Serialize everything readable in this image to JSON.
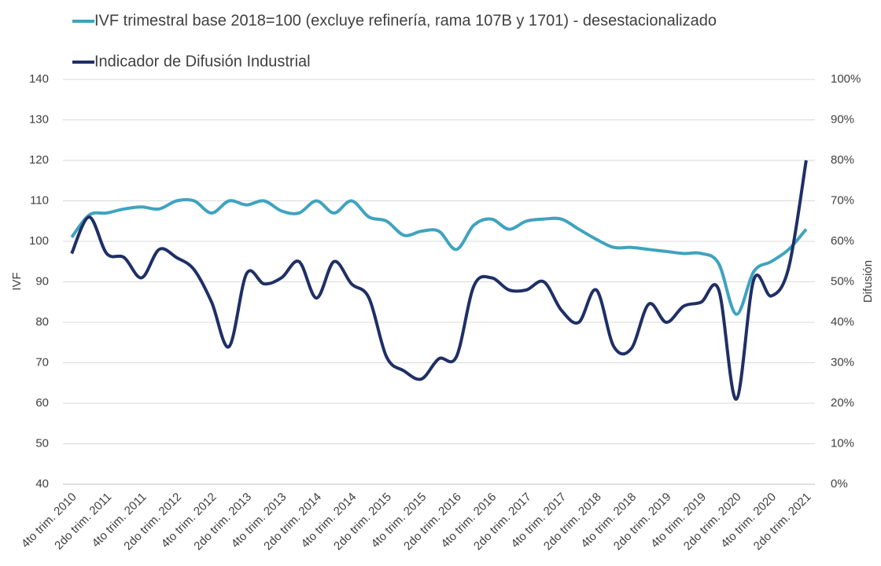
{
  "chart_data": {
    "type": "line",
    "categories": [
      "4to trim. 2010",
      null,
      "2do trim. 2011",
      null,
      "4to trim. 2011",
      null,
      "2do trim. 2012",
      null,
      "4to trim. 2012",
      null,
      "2do trim. 2013",
      null,
      "4to trim. 2013",
      null,
      "2do trim. 2014",
      null,
      "4to trim. 2014",
      null,
      "2do trim. 2015",
      null,
      "4to trim. 2015",
      null,
      "2do trim. 2016",
      null,
      "4to trim. 2016",
      null,
      "2do trim. 2017",
      null,
      "4to trim. 2017",
      null,
      "2do trim. 2018",
      null,
      "4to trim. 2018",
      null,
      "2do trim. 2019",
      null,
      "4to trim. 2019",
      null,
      "2do trim. 2020",
      null,
      "4to trim. 2020",
      null,
      "2do trim. 2021"
    ],
    "series": [
      {
        "name": "IVF trimestral base 2018=100 (excluye refinería, rama 107B y 1701) - desestacionalizado",
        "color": "#3fa3bf",
        "values": [
          101,
          106.5,
          107,
          108,
          108.5,
          108,
          110,
          110,
          107,
          110,
          109,
          110,
          107.5,
          107,
          110,
          107,
          110,
          106,
          105,
          101.5,
          102.5,
          102.5,
          98,
          104,
          105.5,
          103,
          105,
          105.5,
          105.5,
          103,
          100.5,
          98.5,
          98.5,
          98,
          97.5,
          97,
          97,
          94.5,
          82,
          92.5,
          95,
          98,
          103
        ]
      },
      {
        "name": "Indicador de Difusión Industrial",
        "color": "#1f2f66",
        "axis": "y2",
        "values": [
          57,
          66,
          57,
          56,
          51,
          58,
          56,
          53,
          45,
          34,
          52,
          49.5,
          51,
          55,
          46,
          55,
          49.5,
          46,
          31.5,
          28,
          26,
          31,
          31.5,
          49,
          51,
          48,
          48,
          50,
          43,
          40,
          48,
          34,
          33.5,
          44.5,
          40,
          44,
          45,
          48,
          21,
          50.5,
          46.5,
          53.5,
          80
        ]
      }
    ],
    "ylabel": "IVF",
    "y2label": "Difusión",
    "ylim": [
      40,
      140
    ],
    "yticks": [
      40,
      50,
      60,
      70,
      80,
      90,
      100,
      110,
      120,
      130,
      140
    ],
    "y2lim": [
      0,
      100
    ],
    "y2ticks": [
      {
        "value": 0,
        "label": "0%"
      },
      {
        "value": 10,
        "label": "10%"
      },
      {
        "value": 20,
        "label": "20%"
      },
      {
        "value": 30,
        "label": "30%"
      },
      {
        "value": 40,
        "label": "40%"
      },
      {
        "value": 50,
        "label": "50%"
      },
      {
        "value": 60,
        "label": "60%"
      },
      {
        "value": 70,
        "label": "70%"
      },
      {
        "value": 80,
        "label": "80%"
      },
      {
        "value": 90,
        "label": "90%"
      },
      {
        "value": 100,
        "label": "100%"
      }
    ],
    "grid": true,
    "legend": "top"
  }
}
